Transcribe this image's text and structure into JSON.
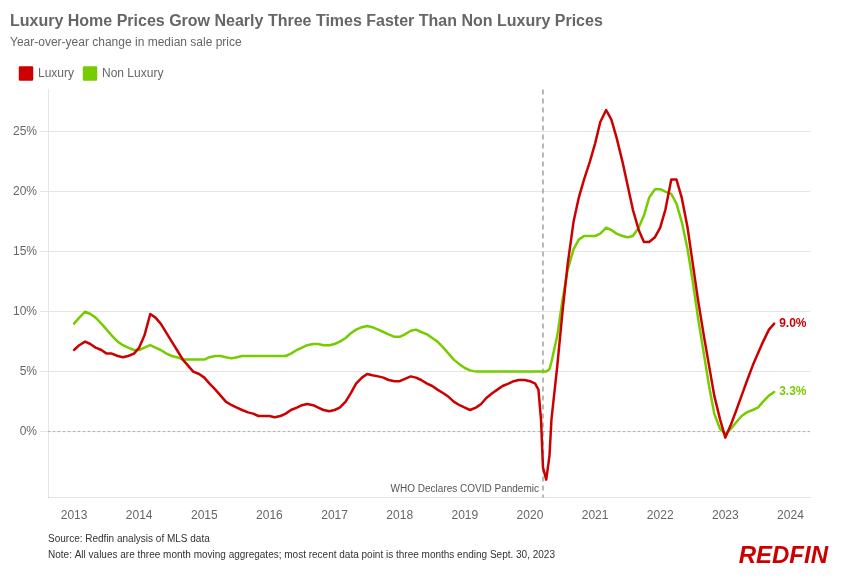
{
  "chart_data": {
    "type": "line",
    "title": "Luxury Home Prices Grow Nearly Three Times Faster Than Non Luxury Prices",
    "subtitle": "Year-over-year change in median sale price",
    "source": "Source: Redfin analysis of MLS data",
    "note": "Note: All values are three month moving aggregates; most recent data point is three months ending Sept. 30, 2023",
    "logo": {
      "text": "REDFIN",
      "color": "#cc0000"
    },
    "legend": "top left",
    "grid": "y",
    "xlim": [
      2012.6,
      2024.3
    ],
    "xticks": [
      2013,
      2014,
      2015,
      2016,
      2017,
      2018,
      2019,
      2020,
      2021,
      2022,
      2023,
      2024
    ],
    "ylim": [
      -0.055,
      0.285
    ],
    "yticks": [
      {
        "value": 0.0,
        "label": "0%"
      },
      {
        "value": 0.05,
        "label": "5%"
      },
      {
        "value": 0.1,
        "label": "10%"
      },
      {
        "value": 0.15,
        "label": "15%"
      },
      {
        "value": 0.2,
        "label": "20%"
      },
      {
        "value": 0.25,
        "label": "25%"
      }
    ],
    "reference_lines": [
      {
        "x": 2020.2,
        "label": "WHO Declares COVID Pandemic"
      },
      {
        "y": 0.0
      }
    ],
    "annotations": [
      {
        "text": "9.0%",
        "x": 2023.75,
        "y": 0.09,
        "color": "#cc0000"
      },
      {
        "text": "3.3%",
        "x": 2023.75,
        "y": 0.033,
        "color": "#77cc00"
      }
    ],
    "x": [
      2013.0,
      2013.08,
      2013.17,
      2013.25,
      2013.33,
      2013.42,
      2013.5,
      2013.58,
      2013.67,
      2013.75,
      2013.83,
      2013.92,
      2014.0,
      2014.08,
      2014.17,
      2014.25,
      2014.33,
      2014.42,
      2014.5,
      2014.58,
      2014.67,
      2014.75,
      2014.83,
      2014.92,
      2015.0,
      2015.08,
      2015.17,
      2015.25,
      2015.33,
      2015.42,
      2015.5,
      2015.58,
      2015.67,
      2015.75,
      2015.83,
      2015.92,
      2016.0,
      2016.08,
      2016.17,
      2016.25,
      2016.33,
      2016.42,
      2016.5,
      2016.58,
      2016.67,
      2016.75,
      2016.83,
      2016.92,
      2017.0,
      2017.08,
      2017.17,
      2017.25,
      2017.33,
      2017.42,
      2017.5,
      2017.58,
      2017.67,
      2017.75,
      2017.83,
      2017.92,
      2018.0,
      2018.08,
      2018.17,
      2018.25,
      2018.33,
      2018.42,
      2018.5,
      2018.58,
      2018.67,
      2018.75,
      2018.83,
      2018.92,
      2019.0,
      2019.08,
      2019.17,
      2019.25,
      2019.33,
      2019.42,
      2019.5,
      2019.58,
      2019.67,
      2019.75,
      2019.83,
      2019.92,
      2020.0,
      2020.08,
      2020.13,
      2020.17,
      2020.2,
      2020.25,
      2020.3,
      2020.33,
      2020.42,
      2020.5,
      2020.58,
      2020.67,
      2020.75,
      2020.83,
      2020.92,
      2021.0,
      2021.08,
      2021.17,
      2021.25,
      2021.33,
      2021.42,
      2021.5,
      2021.58,
      2021.67,
      2021.75,
      2021.83,
      2021.92,
      2022.0,
      2022.08,
      2022.17,
      2022.25,
      2022.33,
      2022.42,
      2022.5,
      2022.58,
      2022.67,
      2022.75,
      2022.83,
      2022.92,
      2023.0,
      2023.08,
      2023.17,
      2023.25,
      2023.33,
      2023.42,
      2023.5,
      2023.58,
      2023.67,
      2023.75
    ],
    "series": [
      {
        "name": "Luxury",
        "color": "#cc0000",
        "values": [
          0.068,
          0.072,
          0.075,
          0.073,
          0.07,
          0.068,
          0.065,
          0.065,
          0.063,
          0.062,
          0.063,
          0.065,
          0.07,
          0.08,
          0.098,
          0.095,
          0.09,
          0.082,
          0.075,
          0.068,
          0.06,
          0.055,
          0.05,
          0.048,
          0.045,
          0.04,
          0.035,
          0.03,
          0.025,
          0.022,
          0.02,
          0.018,
          0.016,
          0.015,
          0.013,
          0.013,
          0.013,
          0.012,
          0.013,
          0.015,
          0.018,
          0.02,
          0.022,
          0.023,
          0.022,
          0.02,
          0.018,
          0.017,
          0.018,
          0.02,
          0.025,
          0.032,
          0.04,
          0.045,
          0.048,
          0.047,
          0.046,
          0.045,
          0.043,
          0.042,
          0.042,
          0.044,
          0.046,
          0.045,
          0.043,
          0.04,
          0.038,
          0.035,
          0.032,
          0.029,
          0.025,
          0.022,
          0.02,
          0.018,
          0.02,
          0.023,
          0.028,
          0.032,
          0.035,
          0.038,
          0.04,
          0.042,
          0.043,
          0.043,
          0.042,
          0.04,
          0.035,
          0.01,
          -0.03,
          -0.04,
          -0.02,
          0.01,
          0.055,
          0.1,
          0.14,
          0.175,
          0.195,
          0.21,
          0.225,
          0.24,
          0.258,
          0.268,
          0.26,
          0.245,
          0.225,
          0.205,
          0.185,
          0.168,
          0.158,
          0.158,
          0.162,
          0.17,
          0.185,
          0.21,
          0.21,
          0.195,
          0.17,
          0.14,
          0.11,
          0.08,
          0.055,
          0.03,
          0.01,
          -0.005,
          0.005,
          0.018,
          0.03,
          0.042,
          0.055,
          0.065,
          0.075,
          0.085,
          0.09
        ]
      },
      {
        "name": "Non Luxury",
        "color": "#77cc00",
        "values": [
          0.09,
          0.095,
          0.1,
          0.098,
          0.095,
          0.09,
          0.085,
          0.08,
          0.075,
          0.072,
          0.07,
          0.068,
          0.068,
          0.07,
          0.072,
          0.07,
          0.068,
          0.065,
          0.063,
          0.062,
          0.06,
          0.06,
          0.06,
          0.06,
          0.06,
          0.062,
          0.063,
          0.063,
          0.062,
          0.061,
          0.062,
          0.063,
          0.063,
          0.063,
          0.063,
          0.063,
          0.063,
          0.063,
          0.063,
          0.063,
          0.065,
          0.068,
          0.07,
          0.072,
          0.073,
          0.073,
          0.072,
          0.072,
          0.073,
          0.075,
          0.078,
          0.082,
          0.085,
          0.087,
          0.088,
          0.087,
          0.085,
          0.083,
          0.081,
          0.079,
          0.079,
          0.081,
          0.084,
          0.085,
          0.083,
          0.081,
          0.078,
          0.075,
          0.07,
          0.065,
          0.06,
          0.056,
          0.053,
          0.051,
          0.05,
          0.05,
          0.05,
          0.05,
          0.05,
          0.05,
          0.05,
          0.05,
          0.05,
          0.05,
          0.05,
          0.05,
          0.05,
          0.05,
          0.05,
          0.05,
          0.052,
          0.058,
          0.08,
          0.11,
          0.135,
          0.152,
          0.16,
          0.163,
          0.163,
          0.163,
          0.165,
          0.17,
          0.168,
          0.165,
          0.163,
          0.162,
          0.163,
          0.17,
          0.18,
          0.195,
          0.202,
          0.202,
          0.2,
          0.198,
          0.19,
          0.175,
          0.152,
          0.125,
          0.095,
          0.065,
          0.038,
          0.015,
          0.002,
          -0.002,
          0.002,
          0.008,
          0.013,
          0.016,
          0.018,
          0.02,
          0.025,
          0.03,
          0.033
        ]
      }
    ]
  }
}
